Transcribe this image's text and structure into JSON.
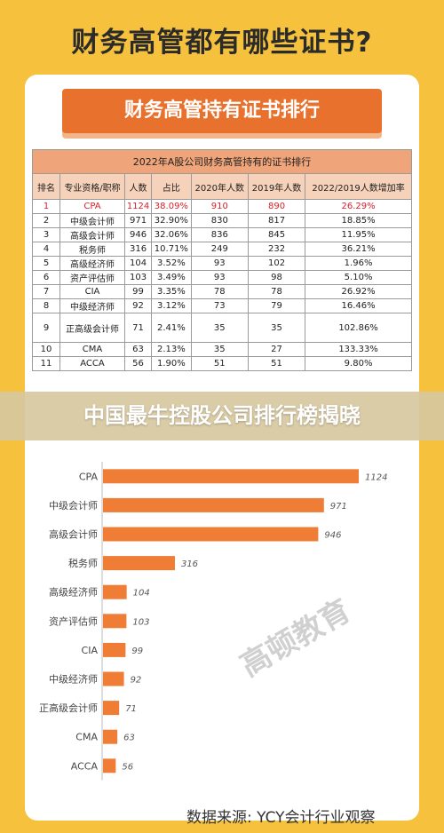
{
  "header": {
    "title": "财务高管都有哪些证书?"
  },
  "banner": {
    "label": "财务高管持有证书排行"
  },
  "table": {
    "caption": "2022年A股公司财务高管持有的证书排行",
    "columns": [
      "排名",
      "专业资格/职称",
      "人数",
      "占比",
      "2020年人数",
      "2019年人数",
      "2022/2019人数增加率"
    ],
    "rows": [
      [
        "1",
        "CPA",
        "1124",
        "38.09%",
        "910",
        "890",
        "26.29%"
      ],
      [
        "2",
        "中级会计师",
        "971",
        "32.90%",
        "830",
        "817",
        "18.85%"
      ],
      [
        "3",
        "高级会计师",
        "946",
        "32.06%",
        "836",
        "845",
        "11.95%"
      ],
      [
        "4",
        "税务师",
        "316",
        "10.71%",
        "249",
        "232",
        "36.21%"
      ],
      [
        "5",
        "高级经济师",
        "104",
        "3.52%",
        "93",
        "102",
        "1.96%"
      ],
      [
        "6",
        "资产评估师",
        "103",
        "3.49%",
        "93",
        "98",
        "5.10%"
      ],
      [
        "7",
        "CIA",
        "99",
        "3.35%",
        "78",
        "78",
        "26.92%"
      ],
      [
        "8",
        "中级经济师",
        "92",
        "3.12%",
        "73",
        "79",
        "16.46%"
      ],
      [
        "9",
        "正高级会计师",
        "71",
        "2.41%",
        "35",
        "35",
        "102.86%"
      ],
      [
        "10",
        "CMA",
        "63",
        "2.13%",
        "35",
        "27",
        "133.33%"
      ],
      [
        "11",
        "ACCA",
        "56",
        "1.90%",
        "51",
        "51",
        "9.80%"
      ]
    ]
  },
  "ribbon": {
    "label": "中国最牛控股公司排行榜揭晓"
  },
  "chart_data": {
    "type": "bar",
    "orientation": "horizontal",
    "categories": [
      "CPA",
      "中级会计师",
      "高级会计师",
      "税务师",
      "高级经济师",
      "资产评估师",
      "CIA",
      "中级经济师",
      "正高级会计师",
      "CMA",
      "ACCA"
    ],
    "values": [
      1124,
      971,
      946,
      316,
      104,
      103,
      99,
      92,
      71,
      63,
      56
    ],
    "xlim": [
      0,
      1124
    ],
    "grid": false,
    "color": "#ef7d35"
  },
  "watermark": {
    "label": "高顿教育"
  },
  "footer": {
    "source": "数据来源: YCY会计行业观察"
  },
  "colors": {
    "background": "#f6c23e",
    "accent": "#e8712d",
    "bar": "#ef7d35"
  }
}
